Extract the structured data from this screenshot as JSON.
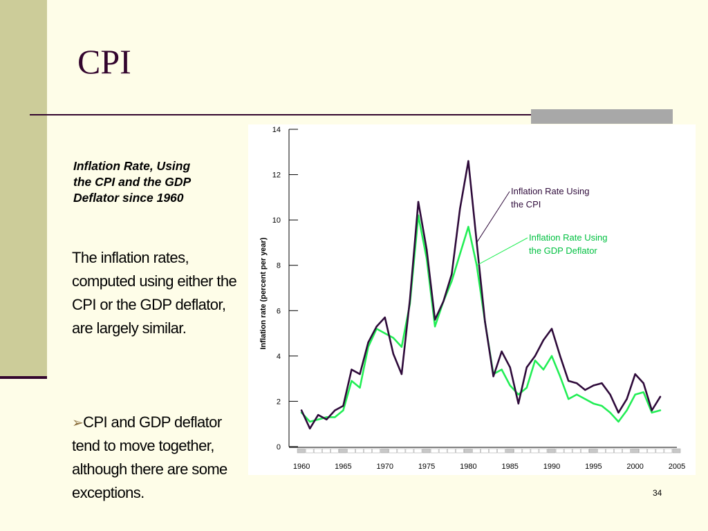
{
  "slide": {
    "title": "CPI",
    "caption": "Inflation Rate, Using\nthe CPI and the GDP\nDeflator since  1960",
    "body": "The inflation rates, computed using either the CPI or the GDP deflator, are largely similar.",
    "bullet_marker": "➢",
    "bullet": "CPI and GDP deflator tend to move together, although there are some exceptions.",
    "page_number": "34"
  },
  "colors": {
    "cpi": "#2e0a3a",
    "gdp": "#22ee55",
    "accent_dark": "#33052e",
    "band": "#cccc99"
  },
  "chart_data": {
    "type": "line",
    "title": "",
    "xlabel": "",
    "ylabel": "Inflation rate (percent per year)",
    "xlim": [
      1958.5,
      2005
    ],
    "ylim": [
      0,
      14
    ],
    "y_ticks": [
      0,
      2,
      4,
      6,
      8,
      10,
      12,
      14
    ],
    "x_ticks": [
      1960,
      1965,
      1970,
      1975,
      1980,
      1985,
      1990,
      1995,
      2000,
      2005
    ],
    "grid": false,
    "x": [
      1960,
      1961,
      1962,
      1963,
      1964,
      1965,
      1966,
      1967,
      1968,
      1969,
      1970,
      1971,
      1972,
      1973,
      1974,
      1975,
      1976,
      1977,
      1978,
      1979,
      1980,
      1981,
      1982,
      1983,
      1984,
      1985,
      1986,
      1987,
      1988,
      1989,
      1990,
      1991,
      1992,
      1993,
      1994,
      1995,
      1996,
      1997,
      1998,
      1999,
      2000,
      2001,
      2002,
      2003
    ],
    "series": [
      {
        "name": "Inflation Rate Using the CPI",
        "values": [
          1.6,
          0.8,
          1.4,
          1.2,
          1.6,
          1.8,
          3.4,
          3.2,
          4.6,
          5.3,
          5.7,
          4.1,
          3.2,
          6.5,
          10.8,
          8.7,
          5.6,
          6.4,
          7.6,
          10.5,
          12.6,
          9.0,
          5.5,
          3.1,
          4.2,
          3.5,
          1.9,
          3.5,
          4.0,
          4.7,
          5.2,
          4.0,
          2.9,
          2.8,
          2.5,
          2.7,
          2.8,
          2.3,
          1.5,
          2.1,
          3.2,
          2.8,
          1.6,
          2.2
        ]
      },
      {
        "name": "Inflation Rate Using the GDP Deflator",
        "values": [
          1.5,
          1.1,
          1.2,
          1.3,
          1.3,
          1.6,
          2.9,
          2.6,
          4.4,
          5.2,
          5.0,
          4.8,
          4.4,
          6.3,
          10.2,
          8.3,
          5.3,
          6.4,
          7.3,
          8.5,
          9.7,
          8.0,
          5.5,
          3.2,
          3.4,
          2.7,
          2.3,
          2.6,
          3.8,
          3.4,
          4.0,
          3.1,
          2.1,
          2.3,
          2.1,
          1.9,
          1.8,
          1.5,
          1.1,
          1.6,
          2.3,
          2.4,
          1.5,
          1.6
        ]
      }
    ],
    "annotations": [
      {
        "series": 0,
        "text_lines": [
          "Inflation Rate Using",
          "the CPI"
        ]
      },
      {
        "series": 1,
        "text_lines": [
          "Inflation Rate Using",
          "the GDP Deflator"
        ]
      }
    ]
  }
}
